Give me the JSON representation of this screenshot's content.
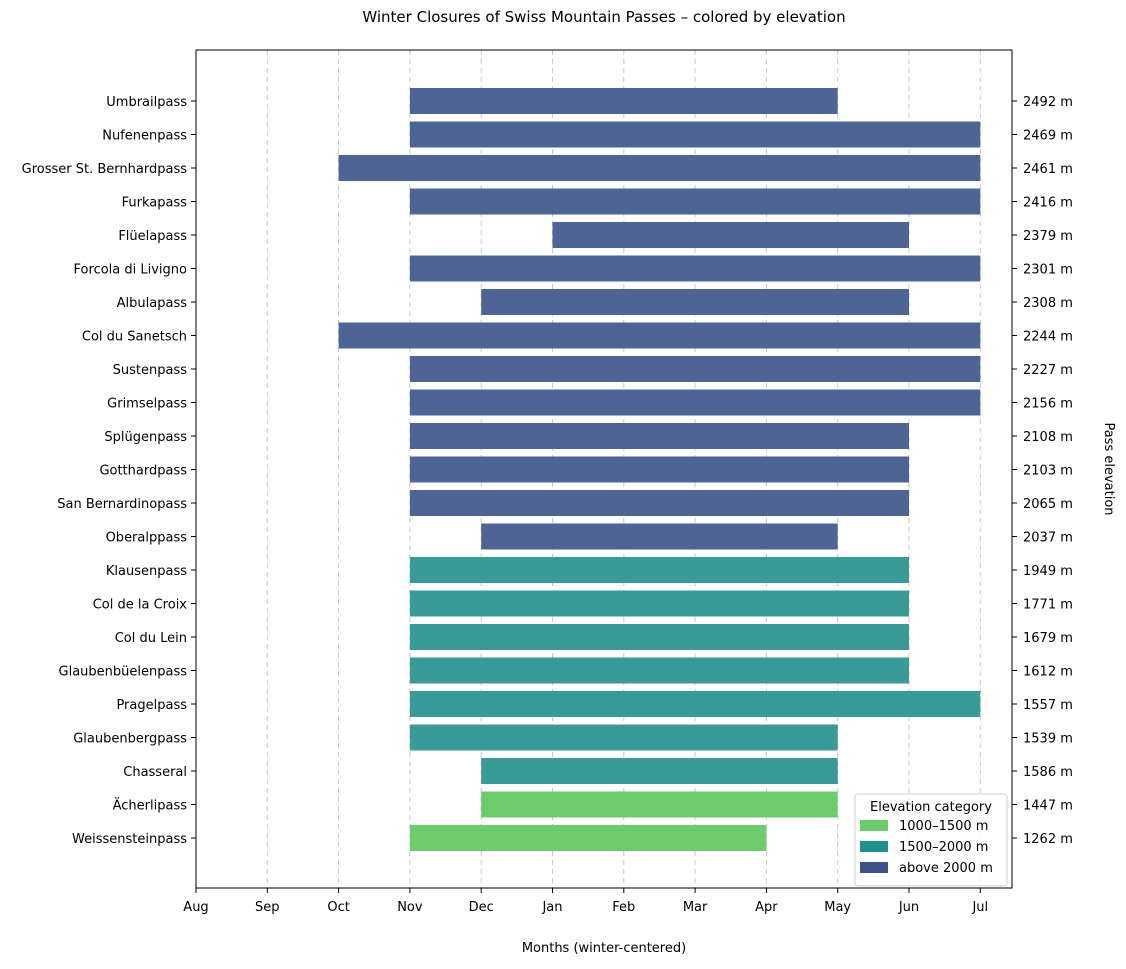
{
  "chart_data": {
    "type": "bar",
    "orientation": "horizontal",
    "title": "Winter Closures of Swiss Mountain Passes – colored by elevation",
    "xlabel": "Months (winter-centered)",
    "ylabel_right": "Pass elevation",
    "x_ticks": [
      "Aug",
      "Sep",
      "Oct",
      "Nov",
      "Dec",
      "Jan",
      "Feb",
      "Mar",
      "Apr",
      "May",
      "Jun",
      "Jul"
    ],
    "grid": "vertical dashed",
    "legend_position": "bottom-right",
    "legend": {
      "title": "Elevation category",
      "entries": [
        {
          "label": "1000–1500 m",
          "color": "#6ccc6c"
        },
        {
          "label": "1500–2000 m",
          "color": "#208f8c"
        },
        {
          "label": "above 2000 m",
          "color": "#3b528b"
        }
      ]
    },
    "passes": [
      {
        "name": "Umbrailpass",
        "elevation_label": "2492 m",
        "category": "above 2000 m",
        "start": "Nov",
        "end": "May"
      },
      {
        "name": "Nufenenpass",
        "elevation_label": "2469 m",
        "category": "above 2000 m",
        "start": "Nov",
        "end": "Jul"
      },
      {
        "name": "Grosser St. Bernhardpass",
        "elevation_label": "2461 m",
        "category": "above 2000 m",
        "start": "Oct",
        "end": "Jul"
      },
      {
        "name": "Furkapass",
        "elevation_label": "2416 m",
        "category": "above 2000 m",
        "start": "Nov",
        "end": "Jul"
      },
      {
        "name": "Flüelapass",
        "elevation_label": "2379 m",
        "category": "above 2000 m",
        "start": "Jan",
        "end": "Jun"
      },
      {
        "name": "Forcola di Livigno",
        "elevation_label": "2301 m",
        "category": "above 2000 m",
        "start": "Nov",
        "end": "Jul"
      },
      {
        "name": "Albulapass",
        "elevation_label": "2308 m",
        "category": "above 2000 m",
        "start": "Dec",
        "end": "Jun"
      },
      {
        "name": "Col du Sanetsch",
        "elevation_label": "2244 m",
        "category": "above 2000 m",
        "start": "Oct",
        "end": "Jul"
      },
      {
        "name": "Sustenpass",
        "elevation_label": "2227 m",
        "category": "above 2000 m",
        "start": "Nov",
        "end": "Jul"
      },
      {
        "name": "Grimselpass",
        "elevation_label": "2156 m",
        "category": "above 2000 m",
        "start": "Nov",
        "end": "Jul"
      },
      {
        "name": "Splügenpass",
        "elevation_label": "2108 m",
        "category": "above 2000 m",
        "start": "Nov",
        "end": "Jun"
      },
      {
        "name": "Gotthardpass",
        "elevation_label": "2103 m",
        "category": "above 2000 m",
        "start": "Nov",
        "end": "Jun"
      },
      {
        "name": "San Bernardinopass",
        "elevation_label": "2065 m",
        "category": "above 2000 m",
        "start": "Nov",
        "end": "Jun"
      },
      {
        "name": "Oberalppass",
        "elevation_label": "2037 m",
        "category": "above 2000 m",
        "start": "Dec",
        "end": "May"
      },
      {
        "name": "Klausenpass",
        "elevation_label": "1949 m",
        "category": "1500–2000 m",
        "start": "Nov",
        "end": "Jun"
      },
      {
        "name": "Col de la Croix",
        "elevation_label": "1771 m",
        "category": "1500–2000 m",
        "start": "Nov",
        "end": "Jun"
      },
      {
        "name": "Col du Lein",
        "elevation_label": "1679 m",
        "category": "1500–2000 m",
        "start": "Nov",
        "end": "Jun"
      },
      {
        "name": "Glaubenbüelenpass",
        "elevation_label": "1612 m",
        "category": "1500–2000 m",
        "start": "Nov",
        "end": "Jun"
      },
      {
        "name": "Pragelpass",
        "elevation_label": "1557 m",
        "category": "1500–2000 m",
        "start": "Nov",
        "end": "Jul"
      },
      {
        "name": "Glaubenbergpass",
        "elevation_label": "1539 m",
        "category": "1500–2000 m",
        "start": "Nov",
        "end": "May"
      },
      {
        "name": "Chasseral",
        "elevation_label": "1586 m",
        "category": "1500–2000 m",
        "start": "Dec",
        "end": "May"
      },
      {
        "name": "Ächerlipass",
        "elevation_label": "1447 m",
        "category": "1000–1500 m",
        "start": "Dec",
        "end": "May"
      },
      {
        "name": "Weissensteinpass",
        "elevation_label": "1262 m",
        "category": "1000–1500 m",
        "start": "Nov",
        "end": "Apr"
      }
    ]
  }
}
